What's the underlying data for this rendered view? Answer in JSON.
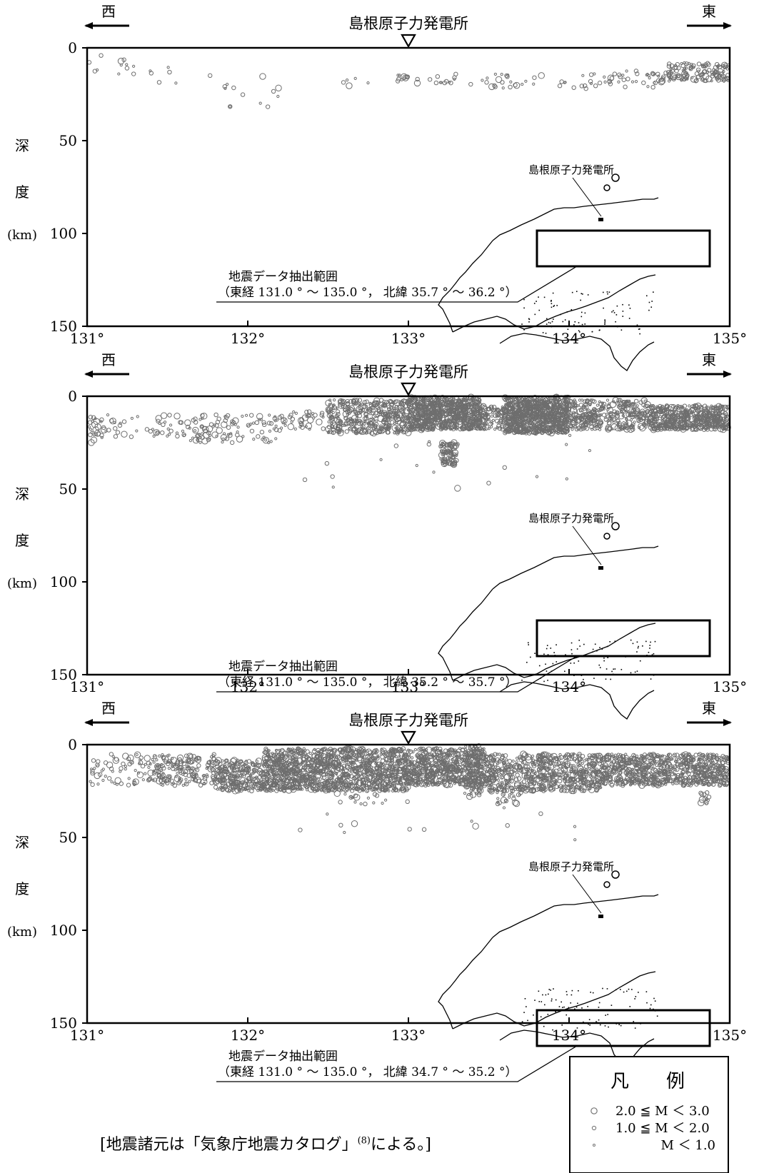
{
  "plant_label": "島根原子力発電所",
  "west_label": "西",
  "east_label": "東",
  "ylabel_chars": [
    "深",
    "度",
    "(km)"
  ],
  "map_plant_label": "島根原子力発電所",
  "range_title": "地震データ抽出範囲",
  "chart_data": [
    {
      "type": "scatter",
      "xlim": [
        131,
        135
      ],
      "ylim": [
        0,
        150
      ],
      "y_inverted": true,
      "xticks": [
        "131°",
        "132°",
        "133°",
        "134°",
        "135°"
      ],
      "yticks": [
        "0",
        "50",
        "100",
        "150"
      ],
      "xlabel": "",
      "ylabel": "深度(km)",
      "range_text": "（東経 131.0 ° ～ 135.0 °， 北緯 35.7 ° ～ 36.2 °）",
      "lat_band": [
        35.7,
        36.2
      ],
      "density": "sparse",
      "clusters": [
        {
          "lon": [
            131.0,
            131.3
          ],
          "depth": [
            3,
            15
          ],
          "n": 14
        },
        {
          "lon": [
            131.3,
            131.6
          ],
          "depth": [
            5,
            20
          ],
          "n": 6
        },
        {
          "lon": [
            131.75,
            132.2
          ],
          "depth": [
            14,
            32
          ],
          "n": 14
        },
        {
          "lon": [
            132.5,
            132.75
          ],
          "depth": [
            15,
            22
          ],
          "n": 5
        },
        {
          "lon": [
            132.93,
            133.0
          ],
          "depth": [
            14,
            18
          ],
          "n": 10
        },
        {
          "lon": [
            133.05,
            133.5
          ],
          "depth": [
            14,
            20
          ],
          "n": 18
        },
        {
          "lon": [
            133.5,
            134.2
          ],
          "depth": [
            14,
            22
          ],
          "n": 35
        },
        {
          "lon": [
            134.2,
            134.6
          ],
          "depth": [
            12,
            22
          ],
          "n": 40
        },
        {
          "lon": [
            134.6,
            135.0
          ],
          "depth": [
            8,
            18
          ],
          "n": 140
        }
      ]
    },
    {
      "type": "scatter",
      "xlim": [
        131,
        135
      ],
      "ylim": [
        0,
        150
      ],
      "y_inverted": true,
      "xticks": [
        "131°",
        "132°",
        "133°",
        "134°",
        "135°"
      ],
      "yticks": [
        "0",
        "50",
        "100",
        "150"
      ],
      "xlabel": "",
      "ylabel": "深度(km)",
      "range_text": "（東経 131.0 ° ～ 135.0 °， 北緯 35.2 ° ～ 35.7 °）",
      "lat_band": [
        35.2,
        35.7
      ],
      "density": "dense",
      "clusters": [
        {
          "lon": [
            131.0,
            131.1
          ],
          "depth": [
            10,
            25
          ],
          "n": 25
        },
        {
          "lon": [
            131.1,
            131.6
          ],
          "depth": [
            10,
            22
          ],
          "n": 45
        },
        {
          "lon": [
            131.6,
            132.2
          ],
          "depth": [
            10,
            25
          ],
          "n": 110
        },
        {
          "lon": [
            132.2,
            132.5
          ],
          "depth": [
            8,
            18
          ],
          "n": 40
        },
        {
          "lon": [
            132.5,
            133.0
          ],
          "depth": [
            2,
            20
          ],
          "n": 420
        },
        {
          "lon": [
            133.0,
            133.45
          ],
          "depth": [
            0,
            18
          ],
          "n": 800
        },
        {
          "lon": [
            133.2,
            133.3
          ],
          "depth": [
            25,
            37
          ],
          "n": 90
        },
        {
          "lon": [
            133.45,
            133.6
          ],
          "depth": [
            5,
            18
          ],
          "n": 90
        },
        {
          "lon": [
            133.6,
            134.0
          ],
          "depth": [
            0,
            20
          ],
          "n": 900
        },
        {
          "lon": [
            134.0,
            134.5
          ],
          "depth": [
            2,
            18
          ],
          "n": 360
        },
        {
          "lon": [
            134.5,
            135.0
          ],
          "depth": [
            5,
            18
          ],
          "n": 520
        },
        {
          "lon": [
            132.3,
            134.2
          ],
          "depth": [
            20,
            50
          ],
          "n": 20
        }
      ]
    },
    {
      "type": "scatter",
      "xlim": [
        131,
        135
      ],
      "ylim": [
        0,
        150
      ],
      "y_inverted": true,
      "xticks": [
        "131°",
        "132°",
        "133°",
        "134°",
        "135°"
      ],
      "yticks": [
        "0",
        "50",
        "100",
        "150"
      ],
      "xlabel": "",
      "ylabel": "深度(km)",
      "range_text": "（東経 131.0 ° ～ 135.0 °， 北緯 34.7 ° ～ 35.2 °）",
      "lat_band": [
        34.7,
        35.2
      ],
      "density": "dense",
      "clusters": [
        {
          "lon": [
            131.0,
            131.4
          ],
          "depth": [
            5,
            22
          ],
          "n": 70
        },
        {
          "lon": [
            131.4,
            131.8
          ],
          "depth": [
            5,
            22
          ],
          "n": 180
        },
        {
          "lon": [
            131.8,
            132.1
          ],
          "depth": [
            8,
            25
          ],
          "n": 260
        },
        {
          "lon": [
            132.1,
            133.0
          ],
          "depth": [
            2,
            25
          ],
          "n": 1300
        },
        {
          "lon": [
            133.0,
            133.5
          ],
          "depth": [
            2,
            22
          ],
          "n": 620
        },
        {
          "lon": [
            133.35,
            133.45
          ],
          "depth": [
            0,
            28
          ],
          "n": 120
        },
        {
          "lon": [
            133.5,
            134.2
          ],
          "depth": [
            5,
            25
          ],
          "n": 650
        },
        {
          "lon": [
            134.2,
            135.0
          ],
          "depth": [
            5,
            22
          ],
          "n": 760
        },
        {
          "lon": [
            132.5,
            133.0
          ],
          "depth": [
            25,
            32
          ],
          "n": 18
        },
        {
          "lon": [
            133.55,
            133.7
          ],
          "depth": [
            25,
            32
          ],
          "n": 20
        },
        {
          "lon": [
            134.8,
            134.9
          ],
          "depth": [
            25,
            32
          ],
          "n": 12
        },
        {
          "lon": [
            132.3,
            134.4
          ],
          "depth": [
            32,
            52
          ],
          "n": 14
        }
      ]
    }
  ],
  "legend": {
    "title": "凡　　例",
    "items": [
      {
        "label": "2.0 ≦ M ＜ 3.0",
        "mag": "large"
      },
      {
        "label": "1.0 ≦ M ＜ 2.0",
        "mag": "medium"
      },
      {
        "label": "M ＜ 1.0",
        "mag": "small"
      }
    ]
  },
  "footnote_before": "[地震諸元は「気象庁地震カタログ」",
  "footnote_ref": "(8)",
  "footnote_after": "による。]"
}
